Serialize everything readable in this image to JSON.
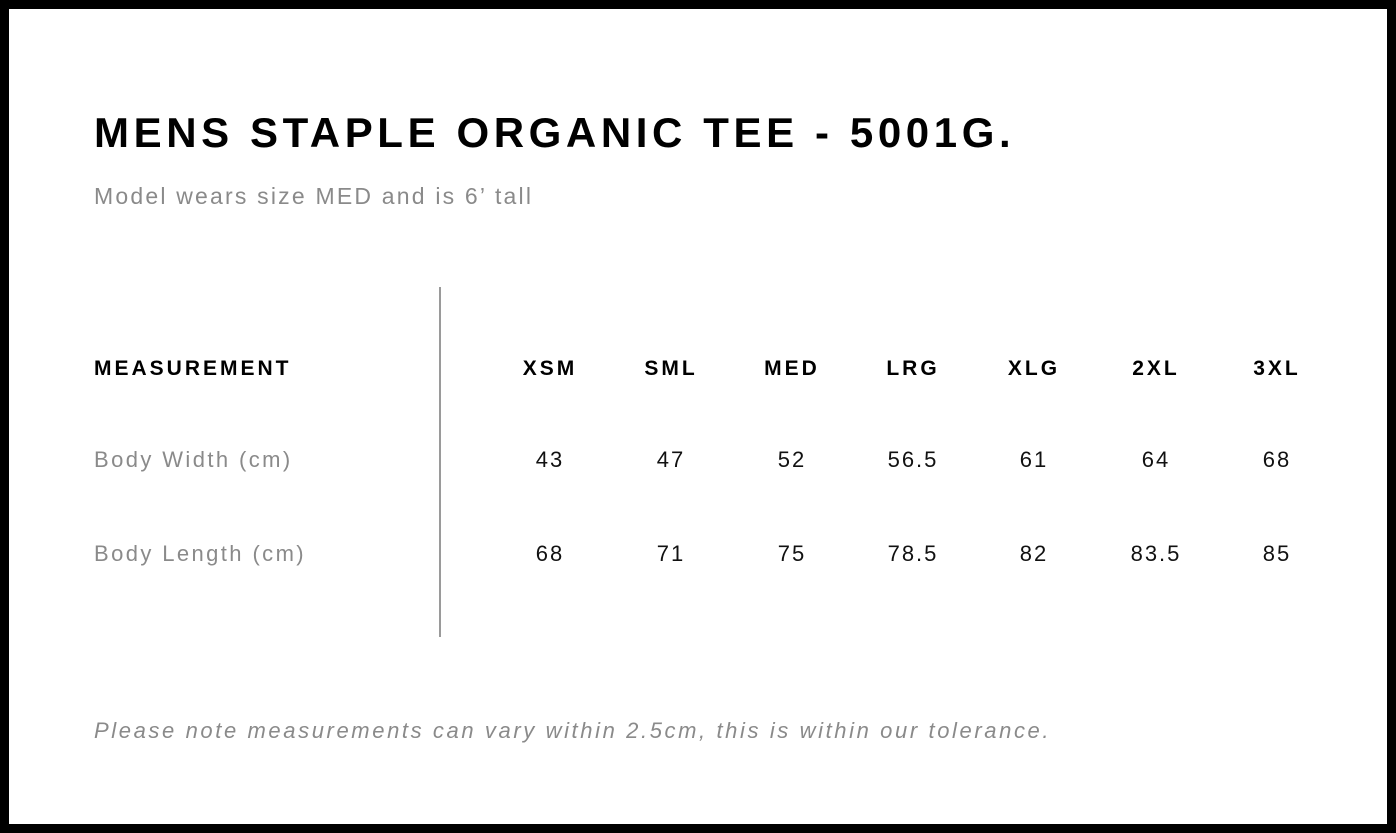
{
  "title": "MENS STAPLE ORGANIC TEE - 5001G.",
  "subtitle": "Model wears size MED and is 6’ tall",
  "table": {
    "header_label": "MEASUREMENT",
    "sizes": [
      "XSM",
      "SML",
      "MED",
      "LRG",
      "XLG",
      "2XL",
      "3XL"
    ],
    "rows": [
      {
        "label": "Body Width (cm)",
        "values": [
          "43",
          "47",
          "52",
          "56.5",
          "61",
          "64",
          "68"
        ]
      },
      {
        "label": "Body Length (cm)",
        "values": [
          "68",
          "71",
          "75",
          "78.5",
          "82",
          "83.5",
          "85"
        ]
      }
    ]
  },
  "note": "Please note measurements can vary within 2.5cm, this is within our tolerance."
}
